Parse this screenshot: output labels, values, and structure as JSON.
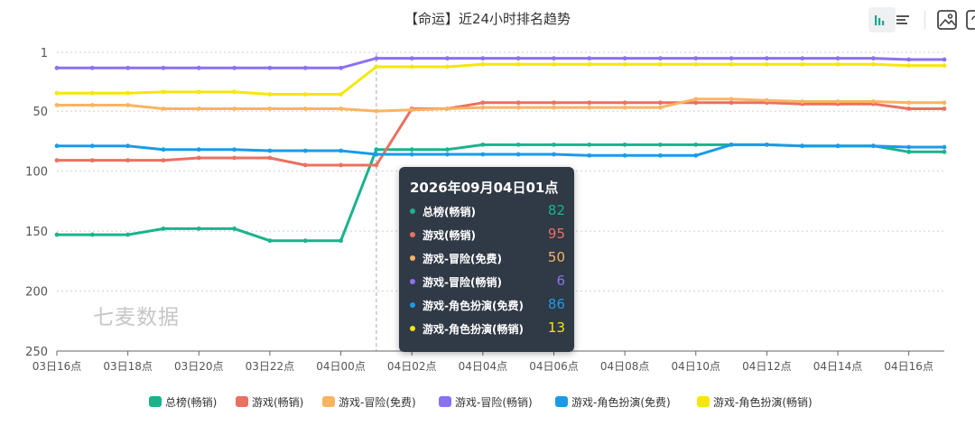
{
  "header": {
    "title": "【命运】近24小时排名趋势"
  },
  "toolbar": {
    "buttons": [
      {
        "name": "line-chart-toggle-icon"
      },
      {
        "name": "bar-chart-toggle-icon"
      },
      {
        "name": "save-image-icon"
      },
      {
        "name": "refresh-icon"
      }
    ]
  },
  "watermark": "七麦数据",
  "colors": {
    "zongbang": "#19b48c",
    "youxi": "#ea7060",
    "maoxian_free": "#f8b462",
    "maoxian_paid": "#8b71f0",
    "jiaose_free": "#1a9be8",
    "jiaose_paid": "#f5e70a"
  },
  "tooltip": {
    "title": "2026年09月04日01点",
    "rows": [
      {
        "name": "总榜(畅销)",
        "value": "82",
        "color": "#19b48c"
      },
      {
        "name": "游戏(畅销)",
        "value": "95",
        "color": "#ea7060"
      },
      {
        "name": "游戏-冒险(免费)",
        "value": "50",
        "color": "#f8b462"
      },
      {
        "name": "游戏-冒险(畅销)",
        "value": "6",
        "color": "#8b71f0"
      },
      {
        "name": "游戏-角色扮演(免费)",
        "value": "86",
        "color": "#1a9be8"
      },
      {
        "name": "游戏-角色扮演(畅销)",
        "value": "13",
        "color": "#f5e70a"
      }
    ]
  },
  "chart_data": {
    "type": "line",
    "title": "【命运】近24小时排名趋势",
    "y_inverted": true,
    "ylim": [
      1,
      250
    ],
    "yticks": [
      "1",
      "50",
      "100",
      "150",
      "200",
      "250"
    ],
    "grid": true,
    "legend_position": "bottom",
    "x": [
      "03日16点",
      "03日17点",
      "03日18点",
      "03日19点",
      "03日20点",
      "03日21点",
      "03日22点",
      "03日23点",
      "04日00点",
      "04日01点",
      "04日02点",
      "04日03点",
      "04日04点",
      "04日05点",
      "04日06点",
      "04日07点",
      "04日08点",
      "04日09点",
      "04日10点",
      "04日11点",
      "04日12点",
      "04日13点",
      "04日14点",
      "04日15点",
      "04日16点",
      "04日17点"
    ],
    "xtick_labels": [
      "03日16点",
      "03日18点",
      "03日20点",
      "03日22点",
      "04日00点",
      "04日02点",
      "04日04点",
      "04日06点",
      "04日08点",
      "04日10点",
      "04日12点",
      "04日14点",
      "04日16点"
    ],
    "crosshair_x": "04日01点",
    "series": [
      {
        "name": "总榜(畅销)",
        "color": "#19b48c",
        "values": [
          153,
          153,
          153,
          148,
          148,
          148,
          158,
          158,
          158,
          82,
          82,
          82,
          78,
          78,
          78,
          78,
          78,
          78,
          78,
          78,
          78,
          79,
          79,
          79,
          84,
          84
        ]
      },
      {
        "name": "游戏(畅销)",
        "color": "#ea7060",
        "values": [
          91,
          91,
          91,
          91,
          89,
          89,
          89,
          95,
          95,
          95,
          48,
          48,
          43,
          43,
          43,
          43,
          43,
          43,
          43,
          43,
          43,
          44,
          44,
          44,
          48,
          48
        ]
      },
      {
        "name": "游戏-冒险(免费)",
        "color": "#f8b462",
        "values": [
          45,
          45,
          45,
          48,
          48,
          48,
          48,
          48,
          48,
          50,
          49,
          48,
          47,
          47,
          47,
          47,
          47,
          47,
          40,
          40,
          41,
          42,
          42,
          42,
          43,
          43
        ]
      },
      {
        "name": "游戏-冒险(畅销)",
        "color": "#8b71f0",
        "values": [
          14,
          14,
          14,
          14,
          14,
          14,
          14,
          14,
          14,
          6,
          6,
          6,
          6,
          6,
          6,
          6,
          6,
          6,
          6,
          6,
          6,
          6,
          6,
          6,
          7,
          7
        ]
      },
      {
        "name": "游戏-角色扮演(免费)",
        "color": "#1a9be8",
        "values": [
          79,
          79,
          79,
          82,
          82,
          82,
          83,
          83,
          83,
          86,
          86,
          86,
          86,
          86,
          86,
          87,
          87,
          87,
          87,
          78,
          78,
          79,
          79,
          79,
          80,
          80
        ]
      },
      {
        "name": "游戏-角色扮演(畅销)",
        "color": "#f5e70a",
        "values": [
          35,
          35,
          35,
          34,
          34,
          34,
          36,
          36,
          36,
          13,
          13,
          13,
          11,
          11,
          11,
          11,
          11,
          11,
          11,
          11,
          11,
          11,
          11,
          11,
          12,
          12
        ]
      }
    ]
  }
}
